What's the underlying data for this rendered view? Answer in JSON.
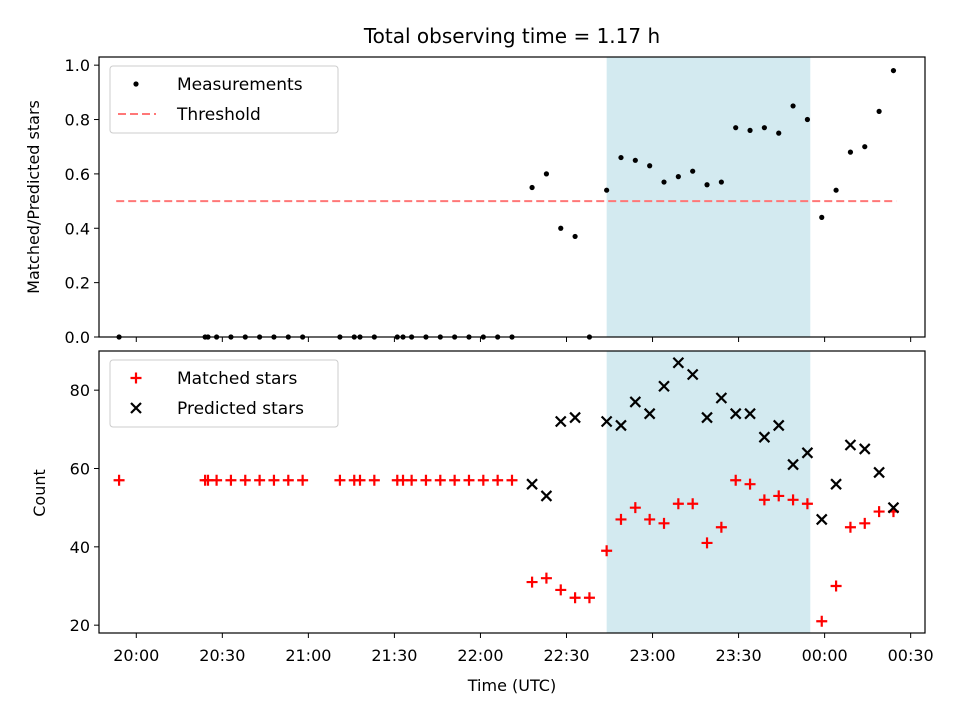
{
  "chart_data": {
    "title": "Total observing time = 1.17 h",
    "xlabel": "Time (UTC)",
    "x_tick_labels": [
      "20:00",
      "20:30",
      "21:00",
      "21:30",
      "22:00",
      "22:30",
      "23:00",
      "23:30",
      "00:00",
      "00:30"
    ],
    "x_range": [
      "19:47",
      "00:35"
    ],
    "highlight_band": {
      "start": "22:44",
      "end": "23:55",
      "color": "#d3eaf0"
    },
    "panels": [
      {
        "type": "scatter",
        "ylabel": "Matched/Predicted stars",
        "ylim": [
          0,
          1.03
        ],
        "y_ticks": [
          "0.0",
          "0.2",
          "0.4",
          "0.6",
          "0.8",
          "1.0"
        ],
        "legend": {
          "placement": "top-left",
          "entries": [
            "Measurements",
            "Threshold"
          ]
        },
        "threshold": {
          "name": "Threshold",
          "value": 0.5,
          "from": "19:53",
          "to": "00:25",
          "color": "#ff7777"
        },
        "series": [
          {
            "name": "Measurements",
            "marker": "dot",
            "color": "#000000",
            "points": [
              [
                "19:54",
                0
              ],
              [
                "20:24",
                0
              ],
              [
                "20:25",
                0
              ],
              [
                "20:28",
                0
              ],
              [
                "20:33",
                0
              ],
              [
                "20:38",
                0
              ],
              [
                "20:43",
                0
              ],
              [
                "20:48",
                0
              ],
              [
                "20:53",
                0
              ],
              [
                "20:58",
                0
              ],
              [
                "21:11",
                0
              ],
              [
                "21:16",
                0
              ],
              [
                "21:18",
                0
              ],
              [
                "21:23",
                0
              ],
              [
                "21:31",
                0
              ],
              [
                "21:33",
                0
              ],
              [
                "21:36",
                0
              ],
              [
                "21:41",
                0
              ],
              [
                "21:46",
                0
              ],
              [
                "21:51",
                0
              ],
              [
                "21:56",
                0
              ],
              [
                "22:01",
                0
              ],
              [
                "22:06",
                0
              ],
              [
                "22:11",
                0
              ],
              [
                "22:18",
                0.55
              ],
              [
                "22:23",
                0.6
              ],
              [
                "22:28",
                0.4
              ],
              [
                "22:33",
                0.37
              ],
              [
                "22:38",
                0
              ],
              [
                "22:44",
                0.54
              ],
              [
                "22:49",
                0.66
              ],
              [
                "22:54",
                0.65
              ],
              [
                "22:59",
                0.63
              ],
              [
                "23:04",
                0.57
              ],
              [
                "23:09",
                0.59
              ],
              [
                "23:14",
                0.61
              ],
              [
                "23:19",
                0.56
              ],
              [
                "23:24",
                0.57
              ],
              [
                "23:29",
                0.77
              ],
              [
                "23:34",
                0.76
              ],
              [
                "23:39",
                0.77
              ],
              [
                "23:44",
                0.75
              ],
              [
                "23:49",
                0.85
              ],
              [
                "23:54",
                0.8
              ],
              [
                "23:59",
                0.44
              ],
              [
                "00:04",
                0.54
              ],
              [
                "00:09",
                0.68
              ],
              [
                "00:14",
                0.7
              ],
              [
                "00:19",
                0.83
              ],
              [
                "00:24",
                0.98
              ]
            ]
          }
        ]
      },
      {
        "type": "scatter",
        "ylabel": "Count",
        "ylim": [
          18,
          90
        ],
        "y_ticks": [
          "20",
          "40",
          "60",
          "80"
        ],
        "legend": {
          "placement": "top-left",
          "entries": [
            "Matched stars",
            "Predicted stars"
          ]
        },
        "series": [
          {
            "name": "Matched stars",
            "marker": "plus",
            "color": "#ff0000",
            "points": [
              [
                "19:54",
                57
              ],
              [
                "20:24",
                57
              ],
              [
                "20:25",
                57
              ],
              [
                "20:28",
                57
              ],
              [
                "20:33",
                57
              ],
              [
                "20:38",
                57
              ],
              [
                "20:43",
                57
              ],
              [
                "20:48",
                57
              ],
              [
                "20:53",
                57
              ],
              [
                "20:58",
                57
              ],
              [
                "21:11",
                57
              ],
              [
                "21:16",
                57
              ],
              [
                "21:18",
                57
              ],
              [
                "21:23",
                57
              ],
              [
                "21:31",
                57
              ],
              [
                "21:33",
                57
              ],
              [
                "21:36",
                57
              ],
              [
                "21:41",
                57
              ],
              [
                "21:46",
                57
              ],
              [
                "21:51",
                57
              ],
              [
                "21:56",
                57
              ],
              [
                "22:01",
                57
              ],
              [
                "22:06",
                57
              ],
              [
                "22:11",
                57
              ],
              [
                "22:18",
                31
              ],
              [
                "22:23",
                32
              ],
              [
                "22:28",
                29
              ],
              [
                "22:33",
                27
              ],
              [
                "22:38",
                27
              ],
              [
                "22:44",
                39
              ],
              [
                "22:49",
                47
              ],
              [
                "22:54",
                50
              ],
              [
                "22:59",
                47
              ],
              [
                "23:04",
                46
              ],
              [
                "23:09",
                51
              ],
              [
                "23:14",
                51
              ],
              [
                "23:19",
                41
              ],
              [
                "23:24",
                45
              ],
              [
                "23:29",
                57
              ],
              [
                "23:34",
                56
              ],
              [
                "23:39",
                52
              ],
              [
                "23:44",
                53
              ],
              [
                "23:49",
                52
              ],
              [
                "23:54",
                51
              ],
              [
                "23:59",
                21
              ],
              [
                "00:04",
                30
              ],
              [
                "00:09",
                45
              ],
              [
                "00:14",
                46
              ],
              [
                "00:19",
                49
              ],
              [
                "00:24",
                49
              ]
            ]
          },
          {
            "name": "Predicted stars",
            "marker": "x",
            "color": "#000000",
            "points": [
              [
                "22:18",
                56
              ],
              [
                "22:23",
                53
              ],
              [
                "22:28",
                72
              ],
              [
                "22:33",
                73
              ],
              [
                "22:44",
                72
              ],
              [
                "22:49",
                71
              ],
              [
                "22:54",
                77
              ],
              [
                "22:59",
                74
              ],
              [
                "23:04",
                81
              ],
              [
                "23:09",
                87
              ],
              [
                "23:14",
                84
              ],
              [
                "23:19",
                73
              ],
              [
                "23:24",
                78
              ],
              [
                "23:29",
                74
              ],
              [
                "23:34",
                74
              ],
              [
                "23:39",
                68
              ],
              [
                "23:44",
                71
              ],
              [
                "23:49",
                61
              ],
              [
                "23:54",
                64
              ],
              [
                "23:59",
                47
              ],
              [
                "00:04",
                56
              ],
              [
                "00:09",
                66
              ],
              [
                "00:14",
                65
              ],
              [
                "00:19",
                59
              ],
              [
                "00:24",
                50
              ]
            ]
          }
        ]
      }
    ]
  }
}
